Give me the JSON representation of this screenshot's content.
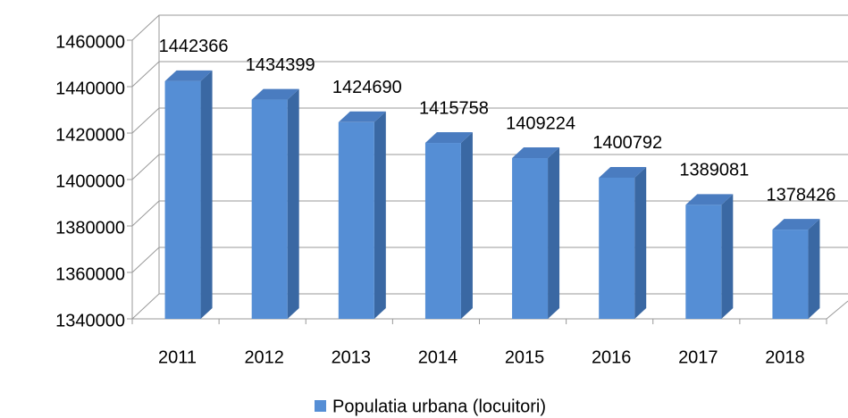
{
  "chart_data": {
    "type": "bar3d",
    "categories": [
      "2011",
      "2012",
      "2013",
      "2014",
      "2015",
      "2016",
      "2017",
      "2018"
    ],
    "series": [
      {
        "name": "Populatia urbana (locuitori)",
        "color": "#558ed5",
        "values": [
          1442366,
          1434399,
          1424690,
          1415758,
          1409224,
          1400792,
          1389081,
          1378426
        ]
      }
    ],
    "ylim": [
      1340000,
      1460000
    ],
    "yticks": [
      1340000,
      1360000,
      1380000,
      1400000,
      1420000,
      1440000,
      1460000
    ],
    "grid": true,
    "legend": "bottom"
  }
}
